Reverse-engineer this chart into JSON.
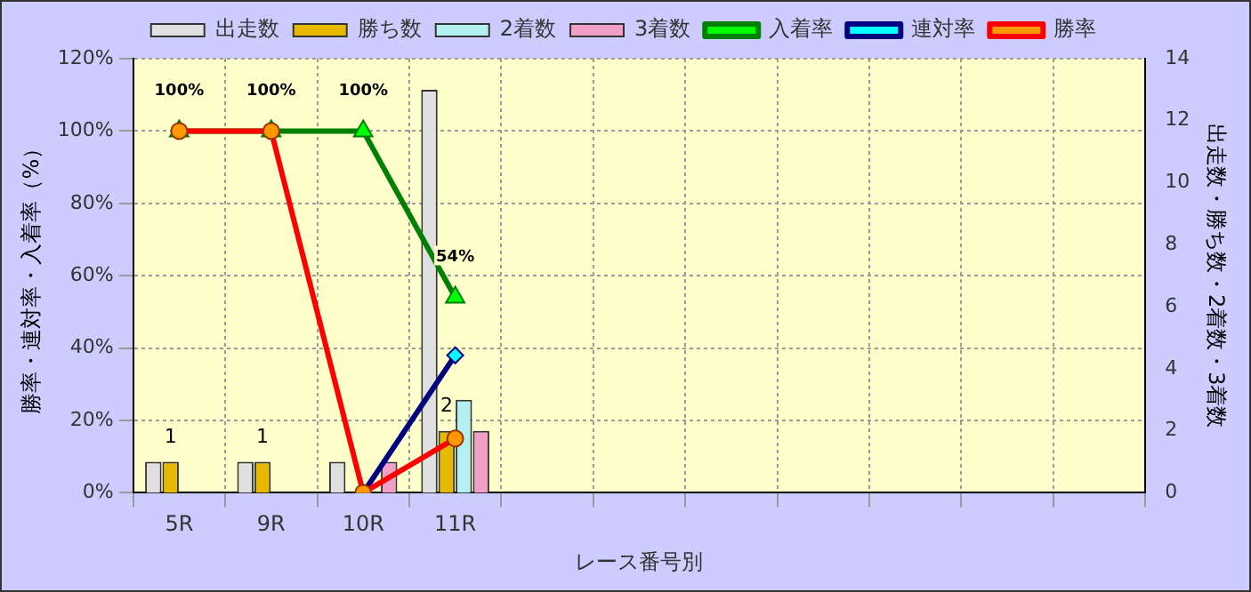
{
  "chart_data": {
    "type": "bar",
    "xlabel": "レース番号別",
    "ylabel": "勝率・連対率・入着率（%）",
    "y2label": "出走数・勝ち数・2着数・3着数",
    "categories": [
      "5R",
      "9R",
      "10R",
      "11R",
      null,
      null,
      null,
      null,
      null,
      null,
      null
    ],
    "series": [
      {
        "name": "出走数",
        "axis": "y2",
        "color": "#e0e0e0",
        "values": [
          1,
          1,
          1,
          13,
          null,
          null,
          null,
          null,
          null,
          null,
          null
        ]
      },
      {
        "name": "勝ち数",
        "axis": "y2",
        "color": "#e6b800",
        "values": [
          1,
          1,
          0,
          2,
          null,
          null,
          null,
          null,
          null,
          null,
          null
        ],
        "value_labels": [
          "1",
          "1",
          null,
          "2",
          null,
          null,
          null,
          null,
          null,
          null,
          null
        ]
      },
      {
        "name": "2着数",
        "axis": "y2",
        "color": "#b3f0f0",
        "values": [
          0,
          0,
          0,
          3,
          null,
          null,
          null,
          null,
          null,
          null,
          null
        ]
      },
      {
        "name": "3着数",
        "axis": "y2",
        "color": "#f0a0c8",
        "values": [
          0,
          0,
          1,
          2,
          null,
          null,
          null,
          null,
          null,
          null,
          null
        ]
      },
      {
        "name": "入着率",
        "type": "line",
        "color": "#008000",
        "marker": "triangle",
        "values": [
          100,
          100,
          100,
          54,
          null,
          null,
          null,
          null,
          null,
          null,
          null
        ],
        "value_labels": [
          "100%",
          "100%",
          "100%",
          "54%",
          null,
          null,
          null,
          null,
          null,
          null,
          null
        ]
      },
      {
        "name": "連対率",
        "type": "line",
        "color": "#000080",
        "marker": "diamond",
        "values": [
          null,
          null,
          0,
          38,
          null,
          null,
          null,
          null,
          null,
          null,
          null
        ]
      },
      {
        "name": "勝率",
        "type": "line",
        "color": "#ff0000",
        "marker": "circle",
        "values": [
          100,
          100,
          0,
          15,
          null,
          null,
          null,
          null,
          null,
          null,
          null
        ]
      }
    ],
    "ylim": [
      0,
      120
    ],
    "yticks": [
      {
        "value": 0,
        "label": "0%"
      },
      {
        "value": 20,
        "label": "20%"
      },
      {
        "value": 40,
        "label": "40%"
      },
      {
        "value": 60,
        "label": "60%"
      },
      {
        "value": 80,
        "label": "80%"
      },
      {
        "value": 100,
        "label": "100%"
      },
      {
        "value": 120,
        "label": "120%"
      }
    ],
    "y2lim": [
      0,
      14
    ],
    "y2ticks": [
      0,
      2,
      4,
      6,
      8,
      10,
      12,
      14
    ],
    "grid": true,
    "legend": "top"
  }
}
